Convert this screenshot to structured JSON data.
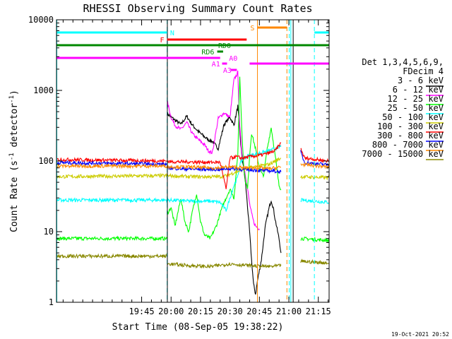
{
  "chart_data": {
    "type": "line",
    "title": "RHESSI Observing Summary Count Rates",
    "xlabel": "Start Time (08-Sep-05 19:38:22)",
    "ylabel_main": "Count Rate (s",
    "ylabel_sup1": "-1",
    "ylabel_mid": " detector",
    "ylabel_sup2": "-1",
    "ylabel_end": ")",
    "timestamp": "19-Oct-2021 20:52",
    "x_range_min": [
      -38.37,
      100.5
    ],
    "y_log_range": [
      1,
      10000
    ],
    "x_ticks": [
      {
        "t": 5,
        "label": "19:45"
      },
      {
        "t": 20,
        "label": "20:00"
      },
      {
        "t": 35,
        "label": "20:15"
      },
      {
        "t": 50,
        "label": "20:30"
      },
      {
        "t": 65,
        "label": "20:45"
      },
      {
        "t": 80,
        "label": "21:00"
      },
      {
        "t": 95,
        "label": "21:15"
      }
    ],
    "y_ticks": [
      {
        "v": 1,
        "label": "1"
      },
      {
        "v": 10,
        "label": "10"
      },
      {
        "v": 100,
        "label": "100"
      },
      {
        "v": 1000,
        "label": "1000"
      },
      {
        "v": 10000,
        "label": "10000"
      }
    ],
    "legend_header": [
      "Det 1,3,4,5,6,9,",
      "FDecim 4"
    ],
    "series": [
      {
        "name": "3 - 6 keV",
        "color": "#000000",
        "segments": [
          [
            [
              18.0,
              470
            ],
            [
              20,
              420
            ],
            [
              22,
              380
            ],
            [
              25,
              330
            ],
            [
              28,
              430
            ],
            [
              31,
              320
            ],
            [
              34,
              260
            ],
            [
              37,
              220
            ],
            [
              39,
              200
            ],
            [
              41,
              190
            ],
            [
              44,
              150
            ],
            [
              47,
              330
            ],
            [
              50,
              420
            ],
            [
              52,
              320
            ],
            [
              54,
              600
            ],
            [
              55,
              260
            ],
            [
              56,
              120
            ],
            [
              57,
              80
            ],
            [
              58,
              45
            ],
            [
              59,
              22
            ],
            [
              60,
              10
            ],
            [
              61,
              4
            ],
            [
              62,
              1.8
            ],
            [
              63,
              1.3
            ],
            [
              64,
              2
            ],
            [
              66,
              4
            ],
            [
              68,
              12
            ],
            [
              70,
              22
            ],
            [
              71,
              28
            ],
            [
              72,
              22
            ],
            [
              73,
              15
            ],
            [
              75,
              8
            ],
            [
              76,
              5
            ]
          ]
        ]
      },
      {
        "name": "6 - 12 keV",
        "color": "#ff00ff",
        "segments": [
          [
            [
              18.0,
              700
            ],
            [
              20,
              420
            ],
            [
              22,
              320
            ],
            [
              25,
              280
            ],
            [
              28,
              350
            ],
            [
              31,
              240
            ],
            [
              34,
              200
            ],
            [
              37,
              170
            ],
            [
              39,
              140
            ],
            [
              41,
              130
            ],
            [
              44,
              400
            ],
            [
              47,
              480
            ],
            [
              50,
              410
            ],
            [
              52,
              1400
            ],
            [
              54,
              1800
            ],
            [
              55,
              300
            ],
            [
              56,
              140
            ],
            [
              57,
              90
            ],
            [
              58,
              60
            ],
            [
              59,
              40
            ],
            [
              60,
              25
            ],
            [
              61,
              18
            ],
            [
              62,
              14
            ],
            [
              63,
              12
            ],
            [
              65,
              11
            ]
          ]
        ]
      },
      {
        "name": "12 - 25 keV",
        "color": "#00ff00",
        "segments": [
          [
            [
              -38.37,
              8
            ],
            [
              18,
              8
            ]
          ],
          [
            [
              18.0,
              18
            ],
            [
              20,
              22
            ],
            [
              22,
              12
            ],
            [
              25,
              30
            ],
            [
              27,
              14
            ],
            [
              29,
              10
            ],
            [
              31,
              20
            ],
            [
              33,
              35
            ],
            [
              35,
              14
            ],
            [
              37,
              9
            ],
            [
              40,
              8
            ],
            [
              43,
              12
            ],
            [
              46,
              22
            ],
            [
              48,
              30
            ],
            [
              50,
              40
            ],
            [
              52,
              30
            ],
            [
              54,
              120
            ],
            [
              55,
              1600
            ],
            [
              56,
              300
            ],
            [
              57,
              80
            ],
            [
              58,
              50
            ],
            [
              59,
              40
            ],
            [
              60,
              120
            ],
            [
              61,
              250
            ],
            [
              63,
              150
            ],
            [
              65,
              80
            ],
            [
              67,
              60
            ],
            [
              69,
              150
            ],
            [
              71,
              300
            ],
            [
              73,
              120
            ],
            [
              75,
              45
            ],
            [
              76,
              40
            ]
          ],
          [
            [
              86,
              8
            ],
            [
              100.5,
              7.5
            ]
          ]
        ]
      },
      {
        "name": "25 - 50 keV",
        "color": "#00ffff",
        "segments": [
          [
            [
              -38.37,
              28
            ],
            [
              18,
              28
            ]
          ],
          [
            [
              18.0,
              28
            ],
            [
              30,
              27
            ],
            [
              40,
              27
            ],
            [
              45,
              26
            ],
            [
              48,
              20
            ],
            [
              50,
              30
            ],
            [
              52,
              45
            ],
            [
              54,
              60
            ],
            [
              55,
              90
            ],
            [
              57,
              110
            ],
            [
              60,
              120
            ],
            [
              65,
              130
            ],
            [
              70,
              140
            ],
            [
              73,
              150
            ],
            [
              76,
              160
            ]
          ],
          [
            [
              86,
              28
            ],
            [
              100.5,
              26
            ]
          ]
        ]
      },
      {
        "name": "50 - 100 keV",
        "color": "#cccc00",
        "segments": [
          [
            [
              -38.37,
              60
            ],
            [
              18,
              62
            ]
          ],
          [
            [
              18.0,
              62
            ],
            [
              30,
              60
            ],
            [
              40,
              60
            ],
            [
              45,
              60
            ],
            [
              48,
              62
            ],
            [
              50,
              65
            ],
            [
              53,
              70
            ],
            [
              56,
              75
            ],
            [
              60,
              80
            ],
            [
              65,
              85
            ],
            [
              70,
              90
            ],
            [
              73,
              100
            ],
            [
              76,
              110
            ]
          ],
          [
            [
              86,
              60
            ],
            [
              100.5,
              58
            ]
          ]
        ]
      },
      {
        "name": "100 - 300 keV",
        "color": "#ff0000",
        "segments": [
          [
            [
              -38.37,
              105
            ],
            [
              18,
              100
            ]
          ],
          [
            [
              18.0,
              98
            ],
            [
              30,
              97
            ],
            [
              40,
              96
            ],
            [
              45,
              96
            ],
            [
              48,
              40
            ],
            [
              50,
              110
            ],
            [
              53,
              115
            ],
            [
              56,
              110
            ],
            [
              60,
              115
            ],
            [
              65,
              120
            ],
            [
              70,
              130
            ],
            [
              73,
              140
            ],
            [
              76,
              180
            ]
          ],
          [
            [
              86,
              150
            ],
            [
              88,
              110
            ],
            [
              100.5,
              100
            ]
          ]
        ]
      },
      {
        "name": "300 - 800 keV",
        "color": "#0000ff",
        "segments": [
          [
            [
              -38.37,
              95
            ],
            [
              18,
              90
            ]
          ],
          [
            [
              18.0,
              80
            ],
            [
              25,
              78
            ],
            [
              30,
              77
            ],
            [
              40,
              76
            ],
            [
              45,
              76
            ],
            [
              48,
              78
            ],
            [
              53,
              78
            ],
            [
              56,
              76
            ],
            [
              60,
              75
            ],
            [
              65,
              74
            ],
            [
              70,
              73
            ],
            [
              73,
              72
            ],
            [
              76,
              70
            ]
          ],
          [
            [
              86,
              135
            ],
            [
              88,
              95
            ],
            [
              100.5,
              88
            ]
          ]
        ]
      },
      {
        "name": "800 - 7000 keV",
        "color": "#ff8800",
        "segments": [
          [
            [
              -38.37,
              85
            ],
            [
              18,
              85
            ]
          ],
          [
            [
              18.0,
              83
            ],
            [
              30,
              82
            ],
            [
              40,
              80
            ],
            [
              45,
              80
            ],
            [
              48,
              82
            ],
            [
              53,
              82
            ],
            [
              56,
              80
            ],
            [
              60,
              80
            ],
            [
              65,
              80
            ],
            [
              70,
              78
            ],
            [
              73,
              80
            ],
            [
              76,
              82
            ]
          ],
          [
            [
              86,
              90
            ],
            [
              100.5,
              82
            ]
          ]
        ]
      },
      {
        "name": "7000 - 15000 keV",
        "color": "#888800",
        "segments": [
          [
            [
              -38.37,
              4.5
            ],
            [
              18,
              4.5
            ]
          ],
          [
            [
              18.0,
              3.5
            ],
            [
              30,
              3.3
            ],
            [
              40,
              3.2
            ],
            [
              50,
              3.5
            ],
            [
              60,
              3.3
            ],
            [
              70,
              3.2
            ],
            [
              76,
              3.3
            ]
          ],
          [
            [
              86,
              3.8
            ],
            [
              100.5,
              3.6
            ]
          ]
        ]
      }
    ],
    "flag_bars": [
      {
        "label": "N",
        "color": "#00ffff",
        "t0": -38.37,
        "t1": 18.0,
        "y": 46,
        "label_t": 19.5,
        "label_side": "right"
      },
      {
        "label": "",
        "color": "#00ffff",
        "t0": 93.0,
        "t1": 100.5,
        "y": 46,
        "label_t": 0,
        "label_side": "none"
      },
      {
        "label": "S",
        "color": "#ff8800",
        "t0": 64.0,
        "t1": 79.0,
        "y": 39,
        "label_t": 62.5,
        "label_side": "left"
      },
      {
        "label": "F",
        "color": "#ff0000",
        "t0": 18.0,
        "t1": 58.5,
        "y": 56,
        "label_t": 16.5,
        "label_side": "left"
      },
      {
        "label": "RD0",
        "color": "#008800",
        "t0": -38.37,
        "t1": 100.5,
        "y": 64,
        "label_t": 44.0,
        "label_side": "right"
      },
      {
        "label": "RD6",
        "color": "#008800",
        "t0": 43.5,
        "t1": 46.5,
        "y": 73,
        "label_t": 42.0,
        "label_side": "left"
      },
      {
        "label": "A0",
        "color": "#ff00ff",
        "t0": -38.37,
        "t1": 45.0,
        "y": 82,
        "label_t": 49.5,
        "label_side": "right"
      },
      {
        "label": "",
        "color": "#ff00ff",
        "t0": 60.0,
        "t1": 100.5,
        "y": 90,
        "label_t": 0,
        "label_side": "none"
      },
      {
        "label": "A1",
        "color": "#ff00ff",
        "t0": 46.0,
        "t1": 48.5,
        "y": 90,
        "label_t": 45.0,
        "label_side": "left"
      },
      {
        "label": "A3",
        "color": "#ff00ff",
        "t0": 50.5,
        "t1": 53.5,
        "y": 99,
        "label_t": 46.5,
        "label_side": "right"
      }
    ],
    "vlines": [
      {
        "t": -38.2,
        "color": "#00ffff",
        "style": "solid"
      },
      {
        "t": 18.0,
        "color": "#00ffff",
        "style": "dashed"
      },
      {
        "t": 18.1,
        "color": "#000000",
        "style": "solid"
      },
      {
        "t": 64.0,
        "color": "#ff8800",
        "style": "solid"
      },
      {
        "t": 79.0,
        "color": "#ff8800",
        "style": "dashed"
      },
      {
        "t": 80.2,
        "color": "#00ffff",
        "style": "dashed"
      },
      {
        "t": 81.0,
        "color": "#00ffff",
        "style": "solid"
      },
      {
        "t": 82.2,
        "color": "#000000",
        "style": "solid"
      },
      {
        "t": 93.0,
        "color": "#00ffff",
        "style": "dashed"
      }
    ]
  }
}
